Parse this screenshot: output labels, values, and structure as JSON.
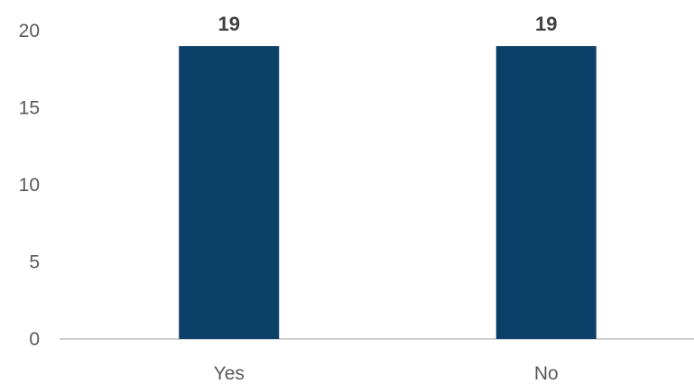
{
  "chart_data": {
    "type": "bar",
    "title": "",
    "xlabel": "",
    "ylabel": "",
    "categories": [
      "Yes",
      "No"
    ],
    "values": [
      19,
      19
    ],
    "data_labels": [
      "19",
      "19"
    ],
    "ylim": [
      0,
      20
    ],
    "yticks": [
      0,
      5,
      10,
      15,
      20
    ],
    "grid": false,
    "legend": "none",
    "bar_color": "#0B4068",
    "axis_color": "#BFBFBF"
  }
}
